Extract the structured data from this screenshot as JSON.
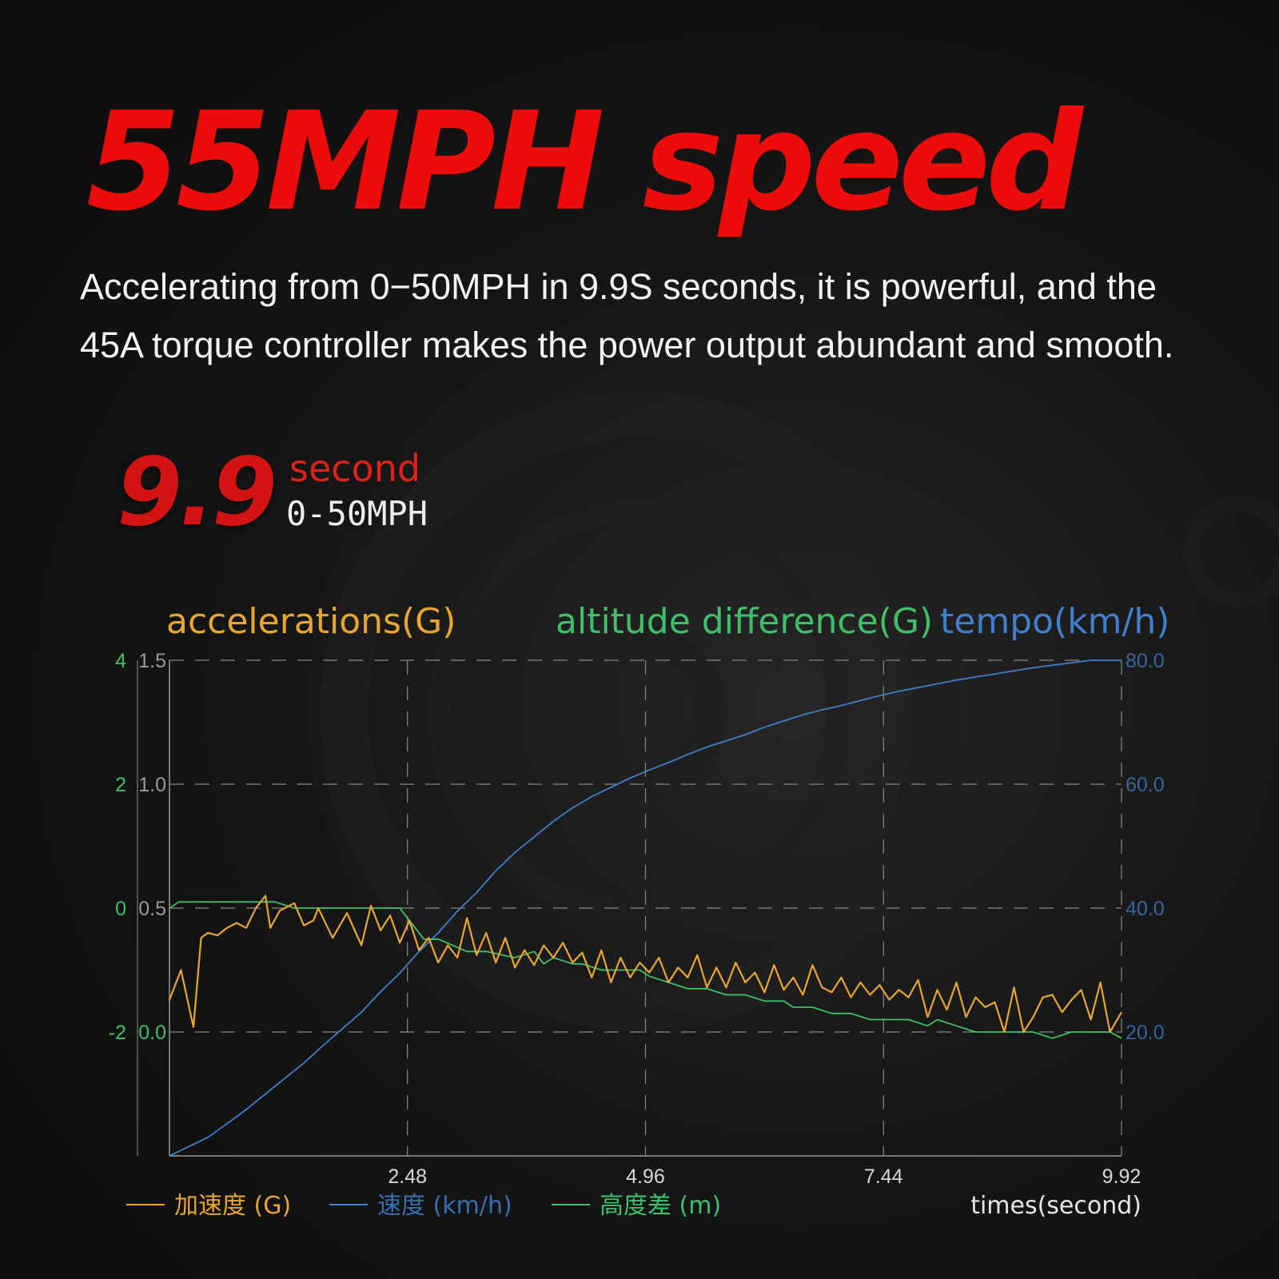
{
  "headline": "55MPH speed",
  "description": {
    "line1": "Accelerating from 0−50MPH in 9.9S seconds, it is powerful, and the",
    "line2": "45A torque controller makes the power output abundant and smooth."
  },
  "highlight": {
    "value": "9.9",
    "unit": "second",
    "label": "0-50MPH"
  },
  "chart_data": {
    "type": "line",
    "axis_titles": {
      "left": "accelerations(G)",
      "middle": "altitude difference(G)",
      "right": "tempo(km/h)"
    },
    "colors": {
      "acceleration": "#e8a630",
      "speed": "#3f7fcb",
      "altitude": "#3fbf6a",
      "grid": "#888888"
    },
    "xlabel": "times(second)",
    "x_ticks": [
      "2.48",
      "4.96",
      "7.44",
      "9.92"
    ],
    "xlim": [
      0,
      9.92
    ],
    "y_altitude": {
      "ticks": [
        "4",
        "2",
        "0",
        "-2"
      ],
      "values": [
        4,
        2,
        0,
        -2
      ],
      "ylim": [
        -4,
        4
      ]
    },
    "y_acceleration": {
      "ticks": [
        "1.5",
        "1.0",
        "0.5",
        "0.0"
      ],
      "values": [
        1.5,
        1.0,
        0.5,
        0.0
      ],
      "ylim": [
        -0.5,
        1.5
      ]
    },
    "y_speed": {
      "ticks": [
        "80.0",
        "60.0",
        "40.0",
        "20.0"
      ],
      "values": [
        80,
        60,
        40,
        20
      ],
      "ylim": [
        0,
        80
      ]
    },
    "grid": true,
    "legend_position": "bottom-left",
    "series": [
      {
        "name": "加速度 (G)",
        "axis": "acceleration",
        "x": [
          0.0,
          0.12,
          0.25,
          0.33,
          0.4,
          0.5,
          0.6,
          0.7,
          0.8,
          0.9,
          1.0,
          1.05,
          1.15,
          1.3,
          1.4,
          1.5,
          1.55,
          1.7,
          1.85,
          2.0,
          2.1,
          2.2,
          2.3,
          2.4,
          2.5,
          2.6,
          2.7,
          2.8,
          2.9,
          3.0,
          3.1,
          3.2,
          3.3,
          3.4,
          3.5,
          3.6,
          3.7,
          3.8,
          3.9,
          4.0,
          4.1,
          4.2,
          4.3,
          4.4,
          4.5,
          4.6,
          4.7,
          4.8,
          4.9,
          5.0,
          5.1,
          5.2,
          5.3,
          5.4,
          5.5,
          5.6,
          5.7,
          5.8,
          5.9,
          6.0,
          6.1,
          6.2,
          6.3,
          6.4,
          6.5,
          6.6,
          6.7,
          6.8,
          6.9,
          7.0,
          7.1,
          7.2,
          7.3,
          7.4,
          7.5,
          7.6,
          7.7,
          7.8,
          7.9,
          8.0,
          8.1,
          8.2,
          8.3,
          8.4,
          8.5,
          8.6,
          8.7,
          8.8,
          8.9,
          9.0,
          9.1,
          9.2,
          9.3,
          9.4,
          9.5,
          9.6,
          9.7,
          9.8,
          9.92
        ],
        "values": [
          0.13,
          0.25,
          0.02,
          0.38,
          0.4,
          0.39,
          0.42,
          0.44,
          0.42,
          0.5,
          0.55,
          0.42,
          0.49,
          0.52,
          0.43,
          0.45,
          0.5,
          0.38,
          0.48,
          0.35,
          0.51,
          0.41,
          0.47,
          0.36,
          0.45,
          0.33,
          0.38,
          0.28,
          0.35,
          0.3,
          0.46,
          0.31,
          0.4,
          0.28,
          0.38,
          0.26,
          0.33,
          0.27,
          0.35,
          0.3,
          0.36,
          0.28,
          0.32,
          0.22,
          0.33,
          0.2,
          0.3,
          0.22,
          0.28,
          0.24,
          0.3,
          0.2,
          0.26,
          0.22,
          0.31,
          0.18,
          0.26,
          0.18,
          0.28,
          0.2,
          0.24,
          0.16,
          0.27,
          0.17,
          0.22,
          0.15,
          0.27,
          0.18,
          0.16,
          0.22,
          0.14,
          0.2,
          0.15,
          0.19,
          0.13,
          0.17,
          0.14,
          0.21,
          0.06,
          0.17,
          0.09,
          0.2,
          0.06,
          0.14,
          0.1,
          0.12,
          0.0,
          0.18,
          0.0,
          0.06,
          0.14,
          0.15,
          0.08,
          0.13,
          0.17,
          0.05,
          0.2,
          0.0,
          0.08
        ]
      },
      {
        "name": "速度 (km/h)",
        "axis": "speed",
        "x": [
          0.0,
          0.2,
          0.4,
          0.6,
          0.8,
          1.0,
          1.2,
          1.4,
          1.6,
          1.8,
          2.0,
          2.2,
          2.4,
          2.6,
          2.8,
          3.0,
          3.2,
          3.4,
          3.6,
          3.8,
          4.0,
          4.2,
          4.4,
          4.6,
          4.8,
          5.0,
          5.2,
          5.4,
          5.6,
          5.8,
          6.0,
          6.2,
          6.4,
          6.6,
          6.8,
          7.0,
          7.2,
          7.4,
          7.6,
          7.8,
          8.0,
          8.2,
          8.4,
          8.6,
          8.8,
          9.0,
          9.2,
          9.4,
          9.6,
          9.8,
          9.92
        ],
        "values": [
          0.0,
          1.5,
          3.0,
          5.2,
          7.5,
          10.0,
          12.5,
          15.0,
          17.8,
          20.5,
          23.2,
          26.5,
          29.5,
          33.0,
          36.0,
          39.5,
          42.5,
          46.0,
          49.0,
          51.5,
          54.0,
          56.2,
          58.0,
          59.5,
          61.0,
          62.3,
          63.5,
          64.8,
          66.0,
          67.0,
          68.0,
          69.2,
          70.2,
          71.2,
          72.0,
          72.7,
          73.5,
          74.3,
          75.0,
          75.6,
          76.2,
          76.8,
          77.3,
          77.8,
          78.3,
          78.8,
          79.2,
          79.6,
          80.0,
          80.0,
          80.0
        ]
      },
      {
        "name": "高度差 (m)",
        "axis": "altitude",
        "x": [
          0.0,
          0.1,
          1.1,
          1.3,
          2.4,
          2.55,
          2.65,
          2.8,
          3.1,
          3.3,
          3.6,
          3.8,
          3.9,
          4.0,
          4.2,
          4.3,
          4.5,
          4.7,
          4.9,
          5.0,
          5.2,
          5.4,
          5.6,
          5.8,
          6.0,
          6.2,
          6.4,
          6.5,
          6.7,
          6.9,
          7.1,
          7.3,
          7.5,
          7.7,
          7.9,
          8.0,
          8.2,
          8.4,
          8.6,
          8.8,
          9.0,
          9.2,
          9.4,
          9.6,
          9.8,
          9.92
        ],
        "values": [
          0.0,
          0.1,
          0.1,
          0.0,
          0.0,
          -0.3,
          -0.5,
          -0.5,
          -0.7,
          -0.7,
          -0.8,
          -0.7,
          -0.9,
          -0.8,
          -0.9,
          -0.9,
          -1.0,
          -1.0,
          -1.0,
          -1.1,
          -1.2,
          -1.3,
          -1.3,
          -1.4,
          -1.4,
          -1.5,
          -1.5,
          -1.6,
          -1.6,
          -1.7,
          -1.7,
          -1.8,
          -1.8,
          -1.8,
          -1.9,
          -1.8,
          -1.9,
          -2.0,
          -2.0,
          -2.0,
          -2.0,
          -2.1,
          -2.0,
          -2.0,
          -2.0,
          -2.1
        ]
      }
    ]
  }
}
